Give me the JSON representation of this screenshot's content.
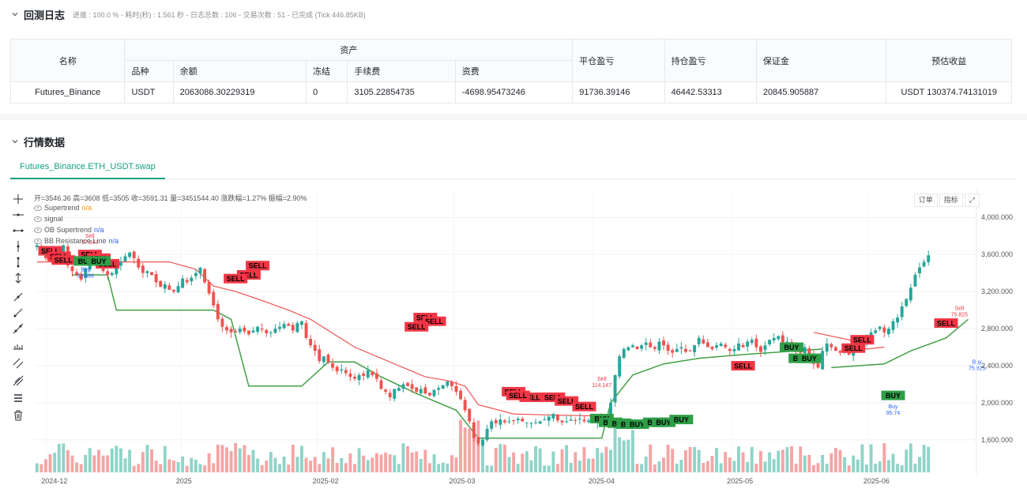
{
  "log": {
    "title": "回测日志",
    "summary": "进度 : 100.0 % - 耗时(秒) : 1.561 秒 - 日志总数 : 106 - 交易次数 : 51 - 已完成 (Tick 446.85KB)"
  },
  "asset_table": {
    "name_header": "名称",
    "asset_header": "资产",
    "sub_headers": [
      "品种",
      "余额",
      "冻结",
      "手续费",
      "资费"
    ],
    "close_pnl_header": "平仓盈亏",
    "hold_pnl_header": "持仓盈亏",
    "margin_header": "保证金",
    "est_profit_header": "预估收益",
    "row": {
      "name": "Futures_Binance",
      "symbol": "USDT",
      "balance": "2063086.30229319",
      "frozen": "0",
      "fee": "3105.22854735",
      "funding": "-4698.95473246",
      "close_pnl": "91736.39146",
      "hold_pnl": "46442.53313",
      "margin": "20845.905887",
      "est_profit": "USDT 130374.74131019"
    }
  },
  "market": {
    "title": "行情数据",
    "tab": "Futures_Binance.ETH_USDT.swap"
  },
  "chart_header": {
    "ohlc": "开=3546.36 高=3608 低=3505 收=3591.31 量=3451544.40 涨跌幅=1.27% 振幅=2.90%",
    "legend": [
      {
        "name": "Supertrend",
        "value": "n/a",
        "color": "#ff9800"
      },
      {
        "name": "signal",
        "value": "",
        "color": ""
      },
      {
        "name": "OB Supertrend",
        "value": "n/a",
        "color": "#2962ff"
      },
      {
        "name": "BB Resistance Line",
        "value": "n/a",
        "color": "#2962ff"
      }
    ],
    "buttons": [
      "订单",
      "指标"
    ]
  },
  "icons": {
    "section_chevron": "chevron-down-icon",
    "fullscreen": "expand-icon",
    "tools": [
      "crosshair-icon",
      "horizontal-line-icon",
      "horizontal-ray-icon",
      "vertical-line-icon",
      "vertical-segment-icon",
      "vertical-arrow-icon",
      "trend-line-icon",
      "ray-icon",
      "extended-line-icon",
      "measure-icon",
      "parallel-channel-icon",
      "pitchfork-icon",
      "layers-icon",
      "trash-icon"
    ]
  },
  "colors": {
    "up": "#26a69a",
    "down": "#ef5350",
    "sell_label": "#f23645",
    "buy_label": "#2e9e47",
    "supertrend_green": "#43a047",
    "supertrend_red": "#ef5350",
    "accent": "#14a085"
  },
  "chart_data": {
    "type": "candlestick",
    "y_axis": {
      "ticks": [
        1600000,
        2000000,
        2400000,
        2800000,
        3200000,
        3600000,
        4000000
      ],
      "tick_labels": [
        "1,600.000",
        "2,000.000",
        "2,400.000",
        "2,800.000",
        "3,200.000",
        "3,600.000",
        "4,000.000"
      ],
      "range": [
        1250,
        4300
      ]
    },
    "x_axis": {
      "tick_labels": [
        "2024-12",
        "2025",
        "2025-02",
        "2025-03",
        "2025-04",
        "2025-05",
        "2025-06"
      ]
    },
    "series": [
      {
        "name": "Supertrend",
        "values": "n/a"
      },
      {
        "name": "OB Supertrend",
        "values": "n/a"
      },
      {
        "name": "BB Resistance Line",
        "values": "n/a"
      }
    ],
    "close_path": [
      3700,
      3620,
      3560,
      3520,
      3560,
      3600,
      3700,
      3480,
      3420,
      3380,
      3330,
      3450,
      3520,
      3500,
      3480,
      3420,
      3380,
      3400,
      3460,
      3520,
      3580,
      3620,
      3560,
      3460,
      3400,
      3420,
      3380,
      3300,
      3250,
      3280,
      3220,
      3200,
      3260,
      3340,
      3300,
      3350,
      3400,
      3460,
      3300,
      3180,
      3050,
      2900,
      2820,
      2780,
      2760,
      2760,
      2800,
      2770,
      2740,
      2780,
      2820,
      2790,
      2750,
      2760,
      2800,
      2820,
      2850,
      2830,
      2780,
      2860,
      2880,
      2700,
      2620,
      2560,
      2450,
      2500,
      2440,
      2380,
      2340,
      2360,
      2320,
      2280,
      2260,
      2300,
      2290,
      2350,
      2300,
      2260,
      2150,
      2120,
      2060,
      2150,
      2160,
      2200,
      2180,
      2150,
      2120,
      2150,
      2100,
      2080,
      2140,
      2160,
      2190,
      2230,
      2180,
      2120,
      2040,
      1920,
      1800,
      1620,
      1560,
      1600,
      1720,
      1800,
      1780,
      1820,
      1790,
      1800,
      1810,
      1830,
      1800,
      1790,
      1780,
      1790,
      1800,
      1820,
      1850,
      1880,
      1810,
      1790,
      1800,
      1820,
      1810,
      1830,
      1800,
      1810,
      1790,
      1800,
      1820,
      1810,
      2000,
      2300,
      2500,
      2580,
      2600,
      2620,
      2580,
      2620,
      2650,
      2600,
      2580,
      2660,
      2620,
      2560,
      2540,
      2580,
      2600,
      2550,
      2560,
      2620,
      2700,
      2640,
      2600,
      2580,
      2620,
      2640,
      2600,
      2560,
      2580,
      2640,
      2600,
      2660,
      2680,
      2600,
      2550,
      2620,
      2680,
      2700,
      2720,
      2650,
      2660,
      2620,
      2560,
      2540,
      2600,
      2500,
      2420,
      2380,
      2560,
      2640,
      2600,
      2560,
      2540,
      2580,
      2520,
      2600,
      2640,
      2660,
      2700,
      2760,
      2780,
      2820,
      2760,
      2800,
      2880,
      2920,
      3040,
      3120,
      3240,
      3380,
      3460,
      3520,
      3591
    ],
    "signals": [
      {
        "type": "SELL",
        "count": 22
      },
      {
        "type": "BUY",
        "count": 14
      },
      {
        "type": "Buy",
        "notes": [
          "53.886",
          "95.74",
          "75.825"
        ]
      },
      {
        "type": "Sell",
        "notes": [
          "57.847",
          "114.147",
          "75.825"
        ]
      }
    ],
    "note_labels": {
      "sell_top": "57.847",
      "sell_mid": "114.147",
      "sell_right": "75.825",
      "buy_left": "53.886",
      "buy_mid": "95.74",
      "buy_right": "75.825"
    },
    "signal_text": {
      "sell": "SELL",
      "buy": "BUY",
      "small_buy": "Buy",
      "small_sell": "Sell"
    }
  }
}
